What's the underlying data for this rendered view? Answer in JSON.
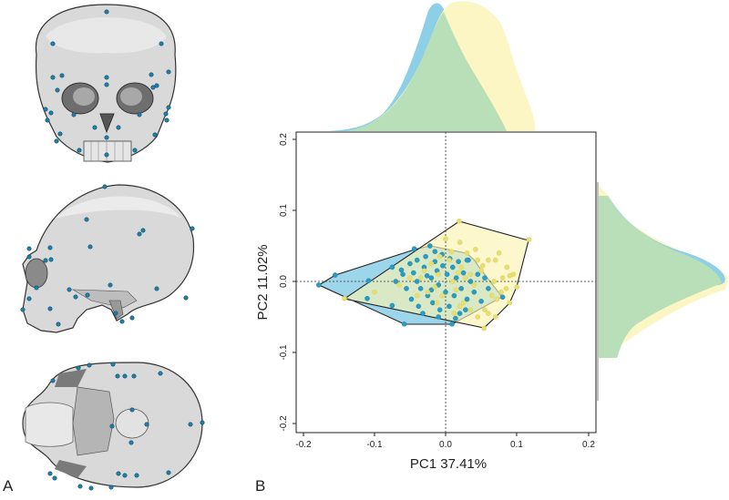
{
  "panels": {
    "a": {
      "label": "A",
      "views": [
        {
          "name": "frontal view of skull with landmarks"
        },
        {
          "name": "lateral view of skull with landmarks"
        },
        {
          "name": "basal view of skull with landmarks"
        }
      ]
    },
    "b": {
      "label": "B"
    }
  },
  "colors": {
    "group1": "#2a9cc4",
    "group1_fill": "#8ccfe6",
    "group2": "#e8e07a",
    "group2_fill": "#fbf6c4",
    "overlap": "#b9dfb9",
    "landmark": "#1f7fa6"
  },
  "chart_data": {
    "type": "scatter",
    "title": "",
    "xlabel": "PC1 37.41%",
    "ylabel": "PC2 11.02%",
    "xlim": [
      -0.2,
      0.2
    ],
    "ylim": [
      -0.2,
      0.2
    ],
    "xticks": [
      "-0.2",
      "-0.1",
      "0.0",
      "0.1",
      "0.2"
    ],
    "yticks": [
      "-0.2",
      "-0.1",
      "0.0",
      "0.1",
      "0.2"
    ],
    "grid": false,
    "reference_lines": {
      "x": 0.0,
      "y": 0.0,
      "style": "dotted"
    },
    "legend": null,
    "marginal_density": {
      "top": "PC1 density per group",
      "right": "PC2 density per group"
    },
    "series": [
      {
        "name": "group-blue",
        "color": "#2a9cc4",
        "hull": [
          [
            -0.178,
            -0.005
          ],
          [
            -0.155,
            0.009
          ],
          [
            -0.044,
            0.046
          ],
          [
            -0.022,
            0.05
          ],
          [
            0.03,
            0.04
          ],
          [
            0.04,
            0.03
          ],
          [
            0.05,
            0.018
          ],
          [
            0.08,
            -0.022
          ],
          [
            0.009,
            -0.06
          ],
          [
            -0.058,
            -0.06
          ]
        ],
        "points": [
          [
            -0.178,
            -0.005
          ],
          [
            -0.155,
            0.009
          ],
          [
            -0.108,
            0.001
          ],
          [
            -0.075,
            0.02
          ],
          [
            -0.044,
            0.046
          ],
          [
            -0.022,
            0.05
          ],
          [
            -0.11,
            -0.024
          ],
          [
            -0.075,
            -0.034
          ],
          [
            -0.058,
            -0.06
          ],
          [
            0.009,
            -0.06
          ],
          [
            0.08,
            -0.022
          ],
          [
            0.032,
            0.03
          ],
          [
            0.03,
            0.03
          ],
          [
            -0.07,
            0.0
          ],
          [
            -0.06,
            0.01
          ],
          [
            -0.05,
            0.025
          ],
          [
            -0.045,
            0.012
          ],
          [
            -0.04,
            0.0
          ],
          [
            -0.035,
            -0.01
          ],
          [
            -0.03,
            0.02
          ],
          [
            -0.028,
            0.035
          ],
          [
            -0.025,
            -0.02
          ],
          [
            -0.02,
            0.005
          ],
          [
            -0.018,
            -0.03
          ],
          [
            -0.015,
            0.028
          ],
          [
            -0.012,
            0.015
          ],
          [
            -0.01,
            -0.005
          ],
          [
            -0.008,
            -0.04
          ],
          [
            -0.005,
            0.038
          ],
          [
            0.0,
            -0.015
          ],
          [
            0.002,
            0.01
          ],
          [
            0.005,
            -0.035
          ],
          [
            0.01,
            0.02
          ],
          [
            0.012,
            -0.02
          ],
          [
            0.015,
            0.005
          ],
          [
            0.02,
            -0.045
          ],
          [
            0.022,
            -0.01
          ],
          [
            0.025,
            0.012
          ],
          [
            0.03,
            -0.025
          ],
          [
            0.035,
            0.0
          ],
          [
            0.04,
            -0.015
          ],
          [
            0.045,
            0.01
          ],
          [
            0.05,
            -0.028
          ],
          [
            0.055,
            0.005
          ],
          [
            0.06,
            -0.01
          ],
          [
            -0.055,
            -0.01
          ],
          [
            -0.048,
            -0.025
          ],
          [
            -0.04,
            0.03
          ],
          [
            -0.032,
            -0.045
          ],
          [
            -0.026,
            0.008
          ],
          [
            -0.02,
            -0.012
          ],
          [
            -0.015,
            0.042
          ],
          [
            -0.01,
            -0.05
          ],
          [
            -0.004,
            0.022
          ],
          [
            0.006,
            0.032
          ],
          [
            0.014,
            -0.052
          ],
          [
            0.018,
            0.028
          ],
          [
            -0.062,
            0.016
          ],
          [
            -0.038,
            -0.035
          ],
          [
            0.028,
            -0.04
          ]
        ]
      },
      {
        "name": "group-yellow",
        "color": "#e8e07a",
        "hull": [
          [
            -0.142,
            -0.024
          ],
          [
            0.019,
            0.085
          ],
          [
            0.117,
            0.059
          ],
          [
            0.1,
            -0.008
          ],
          [
            0.09,
            -0.03
          ],
          [
            0.07,
            -0.05
          ],
          [
            0.054,
            -0.066
          ]
        ],
        "points": [
          [
            -0.142,
            -0.024
          ],
          [
            0.019,
            0.085
          ],
          [
            0.117,
            0.059
          ],
          [
            0.1,
            -0.008
          ],
          [
            0.09,
            -0.03
          ],
          [
            0.07,
            -0.05
          ],
          [
            0.054,
            -0.066
          ],
          [
            -0.1,
            -0.015
          ],
          [
            -0.065,
            -0.005
          ],
          [
            -0.05,
            0.005
          ],
          [
            -0.04,
            -0.02
          ],
          [
            -0.03,
            0.015
          ],
          [
            -0.02,
            0.025
          ],
          [
            -0.015,
            -0.008
          ],
          [
            -0.01,
            0.01
          ],
          [
            -0.005,
            -0.02
          ],
          [
            0.0,
            0.06
          ],
          [
            0.005,
            0.03
          ],
          [
            0.01,
            0.0
          ],
          [
            0.015,
            -0.012
          ],
          [
            0.02,
            0.055
          ],
          [
            0.022,
            0.02
          ],
          [
            0.025,
            -0.03
          ],
          [
            0.03,
            0.04
          ],
          [
            0.035,
            0.01
          ],
          [
            0.04,
            -0.005
          ],
          [
            0.045,
            0.03
          ],
          [
            0.05,
            0.015
          ],
          [
            0.055,
            -0.04
          ],
          [
            0.06,
            0.03
          ],
          [
            0.065,
            -0.02
          ],
          [
            0.07,
            0.03
          ],
          [
            0.075,
            0.04
          ],
          [
            0.08,
            0.005
          ],
          [
            0.085,
            -0.01
          ],
          [
            0.09,
            0.008
          ],
          [
            0.095,
            0.01
          ],
          [
            0.045,
            -0.05
          ],
          [
            0.06,
            -0.045
          ],
          [
            0.035,
            -0.04
          ],
          [
            0.02,
            -0.035
          ],
          [
            0.008,
            0.042
          ],
          [
            -0.008,
            0.035
          ],
          [
            -0.025,
            -0.015
          ],
          [
            -0.035,
            0.005
          ],
          [
            0.012,
            -0.045
          ],
          [
            0.042,
            0.045
          ],
          [
            0.052,
            0.022
          ],
          [
            0.068,
            0.0
          ],
          [
            0.078,
            -0.015
          ],
          [
            0.028,
            0.005
          ],
          [
            0.018,
            0.012
          ],
          [
            -0.012,
            -0.03
          ],
          [
            0.072,
            -0.025
          ],
          [
            0.086,
            0.02
          ]
        ]
      }
    ]
  }
}
